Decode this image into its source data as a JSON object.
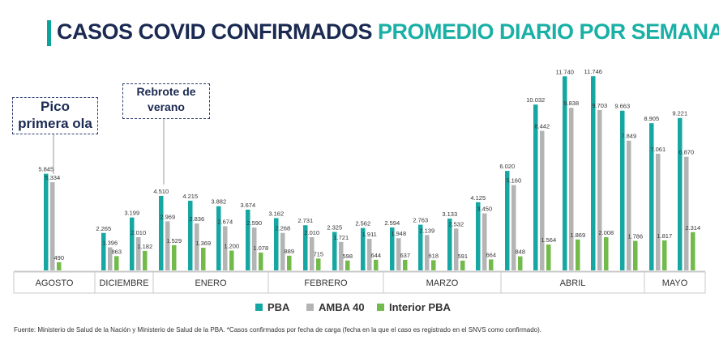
{
  "title": {
    "part1": "CASOS COVID CONFIRMADOS",
    "part2": "PROMEDIO DIARIO POR SEMANA"
  },
  "callouts": [
    {
      "lines": [
        "Pico",
        "primera ola"
      ]
    },
    {
      "lines": [
        "Rebrote de",
        "verano"
      ]
    }
  ],
  "source": "Fuente: Ministerio de Salud de la Nación y Ministerio de Salud de la PBA. *Casos confirmados por fecha de carga (fecha en la que el caso es registrado en el SNVS como confirmado).",
  "colors": {
    "PBA": "#16a7a3",
    "AMBA 40": "#b4b4b4",
    "Interior PBA": "#72bb4a",
    "title_accent": "#1ab0a6",
    "title_dark": "#1b2a52"
  },
  "chart_data": {
    "type": "bar",
    "title": "CASOS COVID CONFIRMADOS PROMEDIO DIARIO POR SEMANA",
    "xlabel": "",
    "ylabel": "",
    "ylim": [
      0,
      12000
    ],
    "grid": false,
    "legend_position": "bottom",
    "series_names": [
      "PBA",
      "AMBA 40",
      "Interior PBA"
    ],
    "weeks": [
      {
        "month": "AGOSTO",
        "PBA": 5845,
        "AMBA 40": 5334,
        "Interior PBA": 490,
        "labels": [
          "5.845",
          "5.334",
          "490"
        ]
      },
      {
        "month": "DICIEMBRE",
        "PBA": 2265,
        "AMBA 40": 1396,
        "Interior PBA": 863,
        "labels": [
          "2.265",
          "1.396",
          "863"
        ]
      },
      {
        "month": "DICIEMBRE",
        "PBA": 3199,
        "AMBA 40": 2010,
        "Interior PBA": 1182,
        "labels": [
          "3.199",
          "2.010",
          "1.182"
        ]
      },
      {
        "month": "ENERO",
        "PBA": 4510,
        "AMBA 40": 2969,
        "Interior PBA": 1529,
        "labels": [
          "4.510",
          "2.969",
          "1.529"
        ]
      },
      {
        "month": "ENERO",
        "PBA": 4215,
        "AMBA 40": 2836,
        "Interior PBA": 1369,
        "labels": [
          "4.215",
          "2.836",
          "1.369"
        ]
      },
      {
        "month": "ENERO",
        "PBA": 3882,
        "AMBA 40": 2674,
        "Interior PBA": 1200,
        "labels": [
          "3.882",
          "2.674",
          "1.200"
        ]
      },
      {
        "month": "ENERO",
        "PBA": 3674,
        "AMBA 40": 2590,
        "Interior PBA": 1078,
        "labels": [
          "3.674",
          "2.590",
          "1.078"
        ]
      },
      {
        "month": "FEBRERO",
        "PBA": 3162,
        "AMBA 40": 2268,
        "Interior PBA": 889,
        "labels": [
          "3.162",
          "2.268",
          "889"
        ]
      },
      {
        "month": "FEBRERO",
        "PBA": 2731,
        "AMBA 40": 2010,
        "Interior PBA": 715,
        "labels": [
          "2.731",
          "2.010",
          "715"
        ]
      },
      {
        "month": "FEBRERO",
        "PBA": 2325,
        "AMBA 40": 1721,
        "Interior PBA": 598,
        "labels": [
          "2.325",
          "1.721",
          "598"
        ]
      },
      {
        "month": "FEBRERO",
        "PBA": 2562,
        "AMBA 40": 1911,
        "Interior PBA": 644,
        "labels": [
          "2.562",
          "1.911",
          "644"
        ]
      },
      {
        "month": "MARZO",
        "PBA": 2594,
        "AMBA 40": 1948,
        "Interior PBA": 637,
        "labels": [
          "2.594",
          "1.948",
          "637"
        ]
      },
      {
        "month": "MARZO",
        "PBA": 2763,
        "AMBA 40": 2139,
        "Interior PBA": 618,
        "labels": [
          "2.763",
          "2.139",
          "618"
        ]
      },
      {
        "month": "MARZO",
        "PBA": 3133,
        "AMBA 40": 2532,
        "Interior PBA": 591,
        "labels": [
          "3.133",
          "2.532",
          "591"
        ]
      },
      {
        "month": "MARZO",
        "PBA": 4125,
        "AMBA 40": 3450,
        "Interior PBA": 664,
        "labels": [
          "4.125",
          "3.450",
          "664"
        ]
      },
      {
        "month": "ABRIL",
        "PBA": 6020,
        "AMBA 40": 5160,
        "Interior PBA": 848,
        "labels": [
          "6.020",
          "5.160",
          "848"
        ]
      },
      {
        "month": "ABRIL",
        "PBA": 10032,
        "AMBA 40": 8442,
        "Interior PBA": 1564,
        "labels": [
          "10.032",
          "8.442",
          "1.564"
        ]
      },
      {
        "month": "ABRIL",
        "PBA": 11740,
        "AMBA 40": 9838,
        "Interior PBA": 1869,
        "labels": [
          "11.740",
          "9.838",
          "1.869"
        ]
      },
      {
        "month": "ABRIL",
        "PBA": 11746,
        "AMBA 40": 9703,
        "Interior PBA": 2008,
        "labels": [
          "11.746",
          "9.703",
          "2.008"
        ]
      },
      {
        "month": "ABRIL",
        "PBA": 9663,
        "AMBA 40": 7849,
        "Interior PBA": 1786,
        "labels": [
          "9.663",
          "7.849",
          "1.786"
        ]
      },
      {
        "month": "MAYO",
        "PBA": 8905,
        "AMBA 40": 7061,
        "Interior PBA": 1817,
        "labels": [
          "8.905",
          "7.061",
          "1.817"
        ]
      },
      {
        "month": "MAYO",
        "PBA": 9221,
        "AMBA 40": 6870,
        "Interior PBA": 2314,
        "labels": [
          "9.221",
          "6.870",
          "2.314"
        ]
      }
    ],
    "months": [
      "AGOSTO",
      "DICIEMBRE",
      "ENERO",
      "FEBRERO",
      "MARZO",
      "ABRIL",
      "MAYO"
    ]
  }
}
